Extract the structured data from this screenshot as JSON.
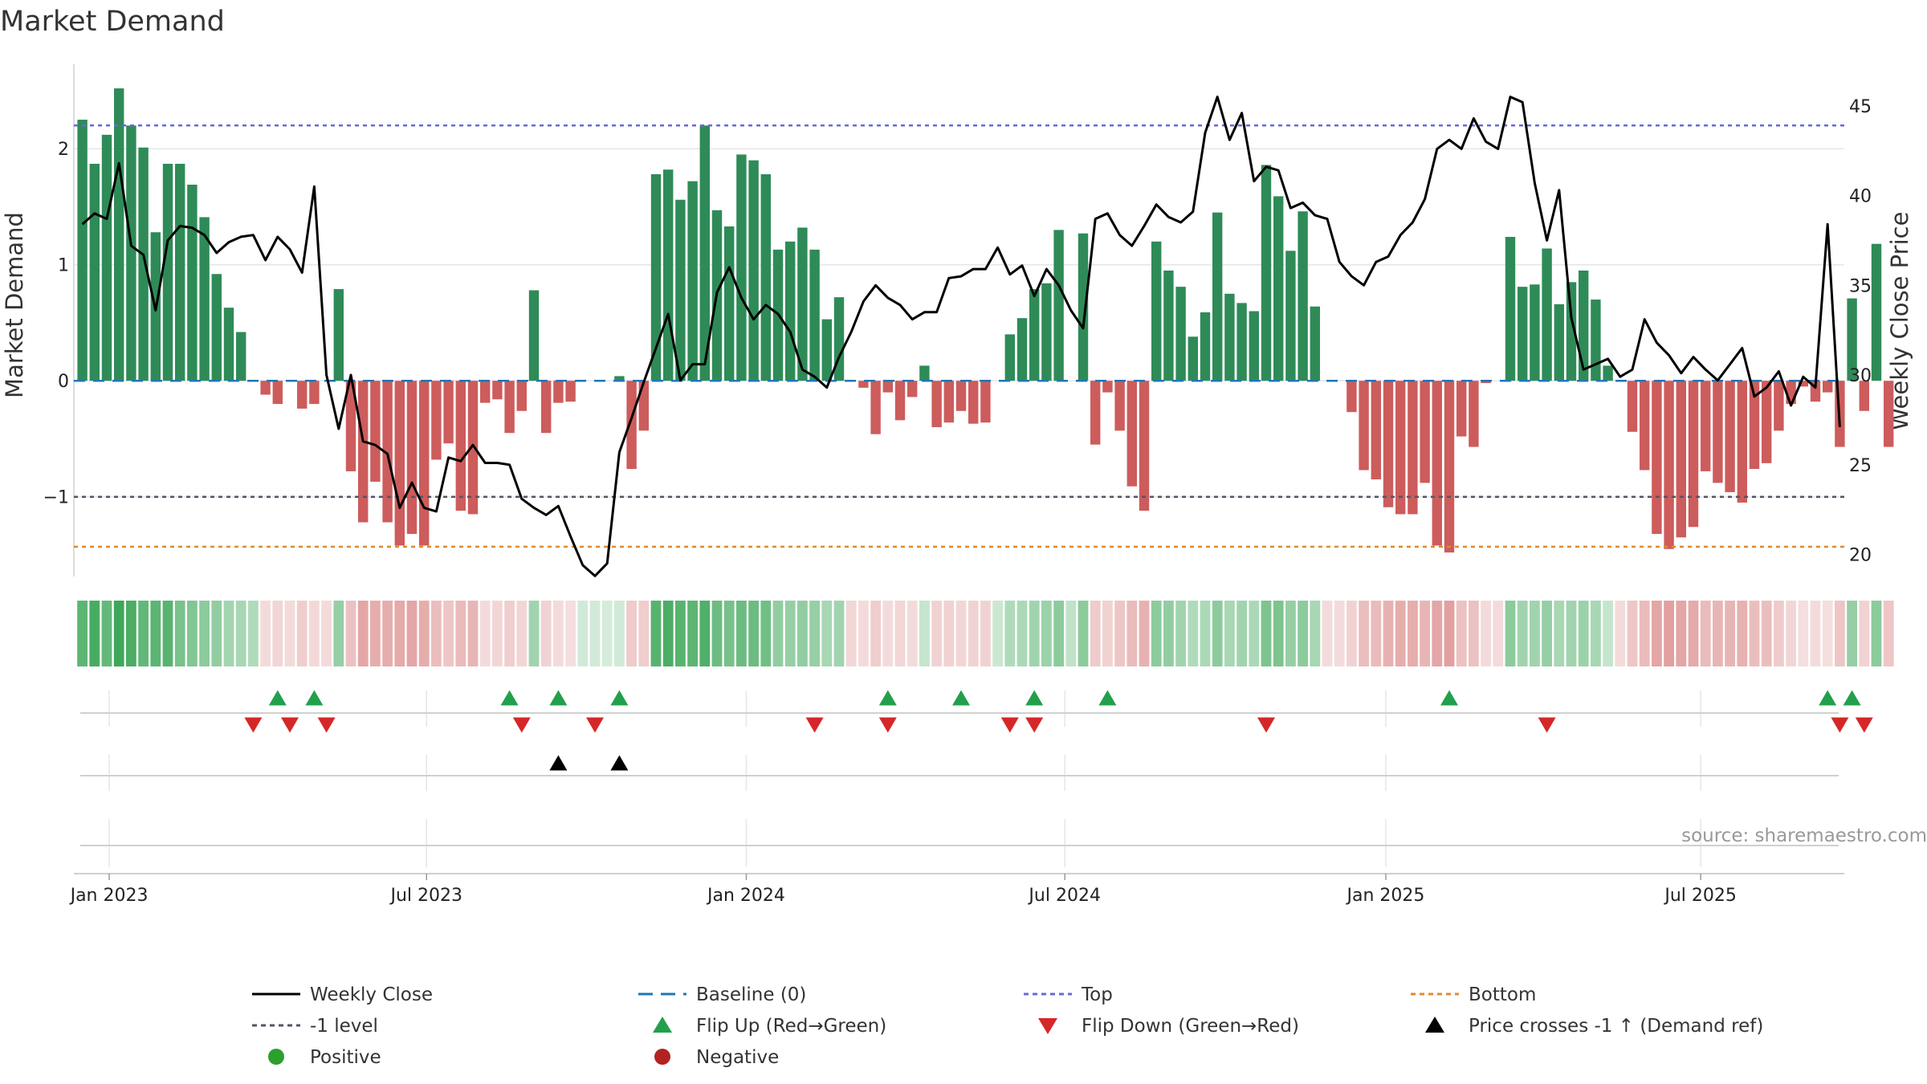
{
  "chart_data": {
    "type": "bar",
    "title": "Market Demand",
    "ylabel_left": "Market Demand",
    "ylabel_right": "Weekly Close Price",
    "left_ylim": [
      -1.72,
      2.76
    ],
    "right_ylim": [
      18.5,
      47
    ],
    "left_ticks": [
      {
        "v": 2,
        "label": "2"
      },
      {
        "v": 1,
        "label": "1"
      },
      {
        "v": 0,
        "label": "0"
      },
      {
        "v": -1,
        "label": "−1"
      }
    ],
    "right_ticks": [
      {
        "v": 45,
        "label": "45"
      },
      {
        "v": 40,
        "label": "40"
      },
      {
        "v": 35,
        "label": "35"
      },
      {
        "v": 30,
        "label": "30"
      },
      {
        "v": 25,
        "label": "25"
      },
      {
        "v": 20,
        "label": "20"
      }
    ],
    "x_ticks": [
      {
        "w": 2.2,
        "label": "Jan 2023"
      },
      {
        "w": 28.2,
        "label": "Jul 2023"
      },
      {
        "w": 54.4,
        "label": "Jan 2024"
      },
      {
        "w": 80.5,
        "label": "Jul 2024"
      },
      {
        "w": 106.8,
        "label": "Jan 2025"
      },
      {
        "w": 132.6,
        "label": "Jul 2025"
      }
    ],
    "reference_lines": {
      "baseline": 0,
      "top": 2.2,
      "minus_one": -1,
      "bottom": -1.43
    },
    "demand": [
      2.25,
      1.87,
      2.12,
      2.52,
      2.2,
      2.01,
      1.28,
      1.87,
      1.87,
      1.69,
      1.41,
      0.92,
      0.63,
      0.42,
      0.0,
      -0.12,
      -0.2,
      0.0,
      -0.24,
      -0.2,
      0.0,
      0.79,
      -0.78,
      -1.22,
      -0.87,
      -1.22,
      -1.42,
      -1.32,
      -1.42,
      -0.68,
      -0.54,
      -1.12,
      -1.15,
      -0.19,
      -0.16,
      -0.45,
      -0.26,
      0.78,
      -0.45,
      -0.19,
      -0.18,
      0.0,
      0.0,
      0.0,
      0.04,
      -0.76,
      -0.43,
      1.78,
      1.82,
      1.56,
      1.72,
      2.2,
      1.47,
      1.33,
      1.95,
      1.9,
      1.78,
      1.13,
      1.2,
      1.32,
      1.13,
      0.53,
      0.72,
      0.0,
      -0.06,
      -0.46,
      -0.1,
      -0.34,
      -0.14,
      0.13,
      -0.4,
      -0.36,
      -0.26,
      -0.37,
      -0.36,
      0.0,
      0.4,
      0.54,
      0.79,
      0.84,
      1.3,
      0.0,
      1.27,
      -0.55,
      -0.1,
      -0.43,
      -0.91,
      -1.12,
      1.2,
      0.95,
      0.81,
      0.38,
      0.59,
      1.45,
      0.75,
      0.67,
      0.6,
      1.86,
      1.59,
      1.12,
      1.46,
      0.64,
      0.0,
      0.0,
      -0.27,
      -0.77,
      -0.85,
      -1.09,
      -1.15,
      -1.15,
      -0.88,
      -1.42,
      -1.48,
      -0.48,
      -0.57,
      -0.02,
      0.0,
      1.24,
      0.81,
      0.83,
      1.14,
      0.66,
      0.85,
      0.95,
      0.7,
      0.13,
      0.0,
      -0.44,
      -0.77,
      -1.32,
      -1.45,
      -1.35,
      -1.26,
      -0.78,
      -0.88,
      -0.96,
      -1.05,
      -0.76,
      -0.71,
      -0.43,
      -0.2,
      -0.05,
      -0.18,
      -0.1,
      -0.57,
      0.71,
      -0.26,
      1.18,
      -0.57
    ],
    "weekly_close": [
      38.4,
      39,
      38.7,
      41.8,
      37.2,
      36.7,
      33.6,
      37.5,
      38.3,
      38.2,
      37.8,
      36.8,
      37.4,
      37.7,
      37.8,
      36.4,
      37.7,
      37,
      35.7,
      40.5,
      30,
      27,
      30,
      26.3,
      26.1,
      25.6,
      22.6,
      24,
      22.6,
      22.4,
      25.4,
      25.2,
      26.1,
      25.1,
      25.1,
      25,
      23.1,
      22.6,
      22.2,
      22.7,
      21,
      19.4,
      18.8,
      19.5,
      25.7,
      27.6,
      29.6,
      31.5,
      33.4,
      29.7,
      30.6,
      30.6,
      34.6,
      36,
      34.3,
      33.1,
      33.9,
      33.4,
      32.4,
      30.3,
      29.9,
      29.3,
      31,
      32.4,
      34.1,
      35,
      34.3,
      33.9,
      33.1,
      33.5,
      33.5,
      35.4,
      35.5,
      35.9,
      35.9,
      37.1,
      35.6,
      36.1,
      34.4,
      35.9,
      35,
      33.6,
      32.6,
      38.7,
      39,
      37.8,
      37.2,
      38.3,
      39.5,
      38.8,
      38.5,
      39.1,
      43.5,
      45.5,
      43.1,
      44.6,
      40.8,
      41.6,
      41.4,
      39.3,
      39.6,
      38.9,
      38.7,
      36.3,
      35.5,
      35,
      36.3,
      36.6,
      37.8,
      38.5,
      39.8,
      42.6,
      43.1,
      42.6,
      44.3,
      43,
      42.6,
      45.5,
      45.2,
      40.7,
      37.5,
      40.3,
      33.2,
      30.3,
      30.6,
      30.9,
      29.9,
      30.3,
      33.1,
      31.8,
      31.1,
      30.1,
      31,
      30.3,
      29.7,
      30.6,
      31.5,
      28.8,
      29.3,
      30.2,
      28.3,
      29.9,
      29.3,
      38.4,
      27.1
    ],
    "heatmap_intensity": [
      0.78,
      0.88,
      0.74,
      0.92,
      0.86,
      0.75,
      0.78,
      0.8,
      0.64,
      0.6,
      0.55,
      0.52,
      0.44,
      0.42,
      0.38,
      -0.22,
      -0.26,
      -0.22,
      -0.3,
      -0.24,
      -0.22,
      0.5,
      -0.38,
      -0.55,
      -0.5,
      -0.5,
      -0.52,
      -0.55,
      -0.5,
      -0.4,
      -0.35,
      -0.42,
      -0.45,
      -0.22,
      -0.25,
      -0.3,
      -0.25,
      0.45,
      -0.28,
      -0.22,
      -0.2,
      0.22,
      0.22,
      0.2,
      0.22,
      -0.32,
      -0.3,
      0.8,
      0.86,
      0.8,
      0.78,
      0.84,
      0.7,
      0.65,
      0.7,
      0.7,
      0.68,
      0.52,
      0.5,
      0.52,
      0.5,
      0.42,
      0.45,
      -0.25,
      -0.22,
      -0.3,
      -0.22,
      -0.25,
      -0.22,
      0.28,
      -0.28,
      -0.28,
      -0.25,
      -0.28,
      -0.28,
      0.25,
      0.38,
      0.4,
      0.45,
      0.48,
      0.55,
      0.3,
      0.55,
      -0.32,
      -0.28,
      -0.35,
      -0.42,
      -0.48,
      0.55,
      0.52,
      0.45,
      0.38,
      0.4,
      0.55,
      0.42,
      0.45,
      0.4,
      0.62,
      0.62,
      0.5,
      0.55,
      0.42,
      -0.22,
      -0.22,
      -0.28,
      -0.4,
      -0.42,
      -0.48,
      -0.5,
      -0.5,
      -0.45,
      -0.55,
      -0.58,
      -0.38,
      -0.38,
      -0.22,
      -0.22,
      0.55,
      0.45,
      0.45,
      0.5,
      0.42,
      0.45,
      0.48,
      0.42,
      0.28,
      -0.22,
      -0.35,
      -0.42,
      -0.55,
      -0.58,
      -0.55,
      -0.52,
      -0.42,
      -0.45,
      -0.45,
      -0.48,
      -0.4,
      -0.4,
      -0.32,
      -0.25,
      -0.2,
      -0.22,
      -0.2,
      -0.35,
      0.5,
      -0.28,
      0.55,
      -0.35
    ],
    "flip_up_weeks": [
      16,
      19,
      35,
      39,
      44,
      66,
      72,
      78,
      84,
      112,
      143,
      145
    ],
    "flip_down_weeks": [
      14,
      17,
      20,
      36,
      42,
      60,
      66,
      76,
      78,
      97,
      120,
      144,
      146
    ],
    "price_cross_weeks": [
      39,
      44
    ],
    "legend": [
      {
        "key": "weekly_close",
        "label": "Weekly Close"
      },
      {
        "key": "baseline",
        "label": "Baseline (0)"
      },
      {
        "key": "top",
        "label": "Top"
      },
      {
        "key": "bottom",
        "label": "Bottom"
      },
      {
        "key": "minus_one",
        "label": "-1 level"
      },
      {
        "key": "flip_up",
        "label": "Flip Up (Red→Green)"
      },
      {
        "key": "flip_down",
        "label": "Flip Down (Green→Red)"
      },
      {
        "key": "price_cross",
        "label": "Price crosses -1 ↑ (Demand ref)"
      },
      {
        "key": "positive",
        "label": "Positive"
      },
      {
        "key": "negative",
        "label": "Negative"
      }
    ],
    "source": "source: sharemaestro.com"
  },
  "colors": {
    "positive_bar": "#2e8b57",
    "negative_bar": "#cd5c5c",
    "close_line": "#000000",
    "baseline": "#1f77b4",
    "top": "#6a6ad4",
    "bottom": "#e08a2c",
    "minus_one": "#555566",
    "flip_up": "#22a04b",
    "flip_down": "#d62728",
    "price_cross": "#000000",
    "positive_dot": "#2ca02c",
    "negative_dot": "#b22222",
    "grid": "#e6e6e6",
    "axis": "#d0d0d0"
  }
}
